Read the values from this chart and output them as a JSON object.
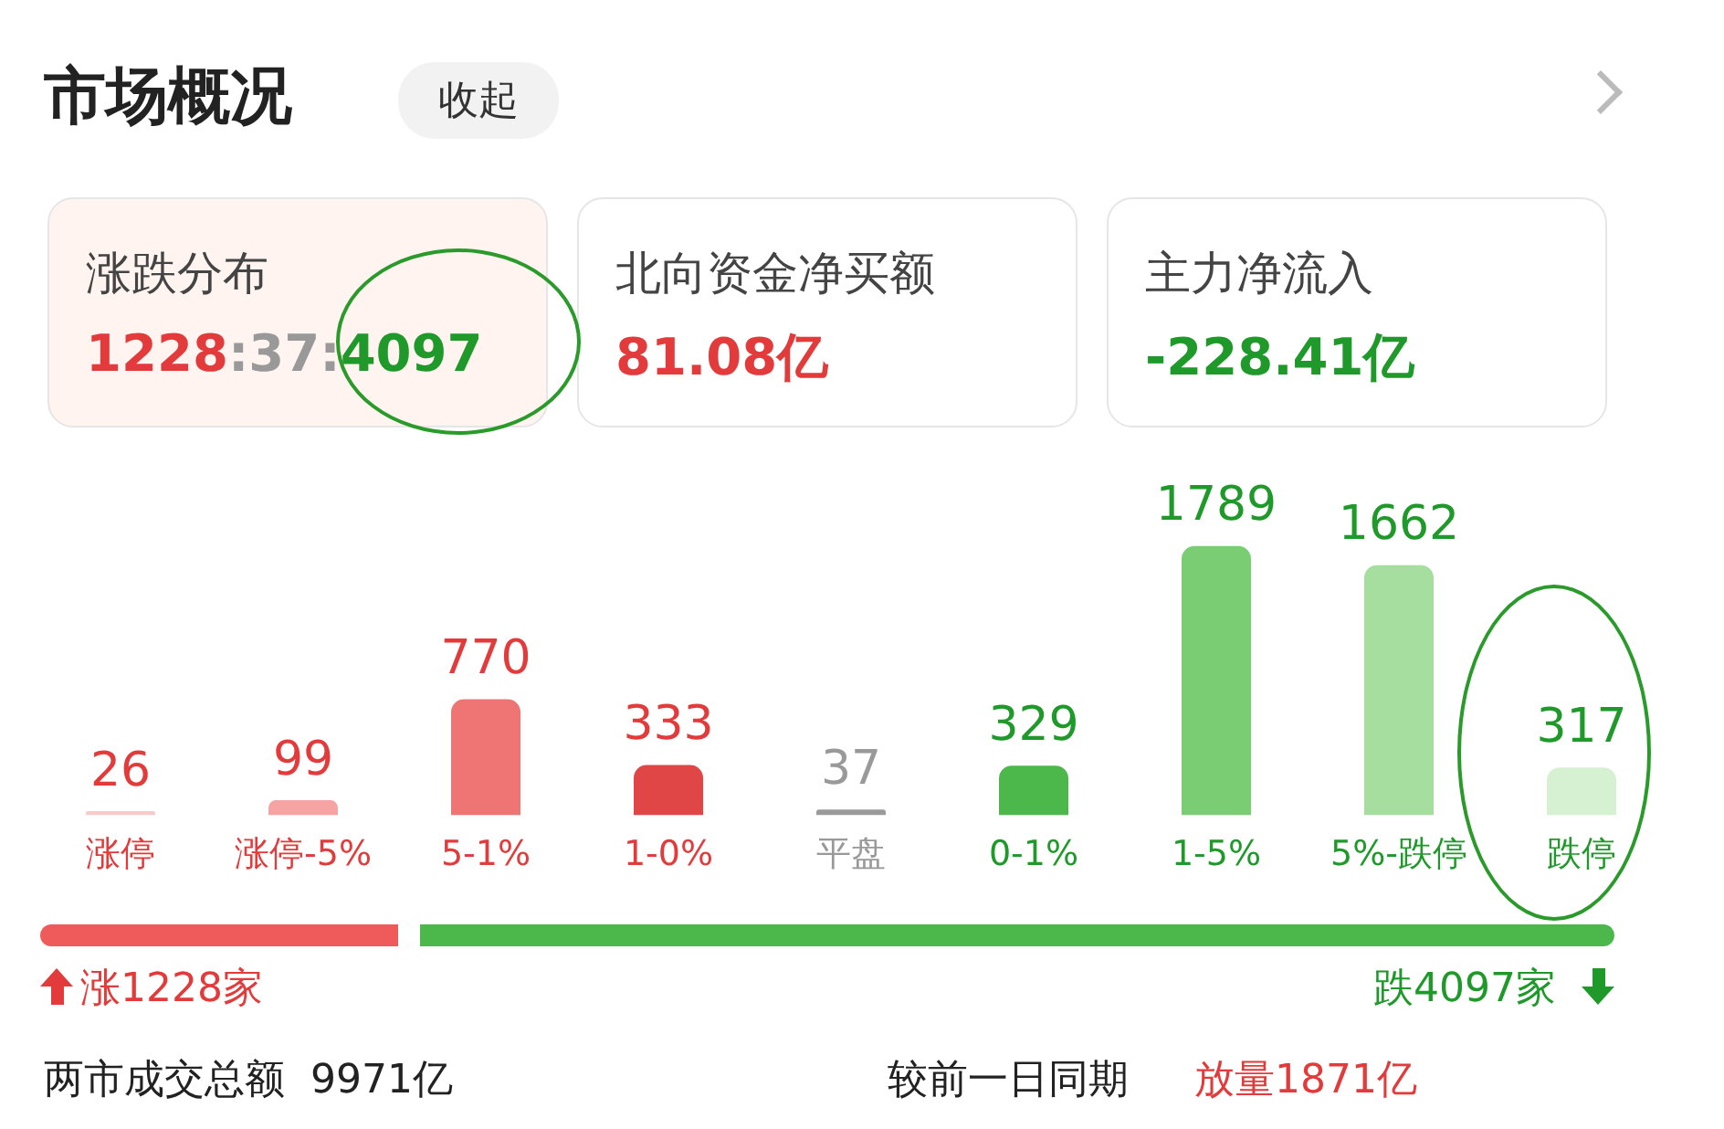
{
  "chart_data": {
    "type": "bar",
    "title": "市场概况",
    "categories": [
      "涨停",
      "涨停-5%",
      "5-1%",
      "1-0%",
      "平盘",
      "0-1%",
      "1-5%",
      "5%-跌停",
      "跌停"
    ],
    "values": [
      26,
      99,
      770,
      333,
      37,
      329,
      1789,
      1662,
      317
    ],
    "colors": [
      "#f9caca",
      "#f5a3a3",
      "#ef7474",
      "#e04646",
      "#9a9a9a",
      "#4cb84c",
      "#7acd72",
      "#a6dea0",
      "#d6f1d2"
    ],
    "data_labels": true,
    "annotations": [
      "收起",
      "涨跌分布",
      "1228:37:4097",
      "北向资金净买额",
      "81.08亿",
      "主力净流入",
      "-228.41亿",
      "涨1228家",
      "跌4097家",
      "两市成交总额  9971亿",
      "较前一日同期",
      "放量1871亿"
    ]
  }
}
